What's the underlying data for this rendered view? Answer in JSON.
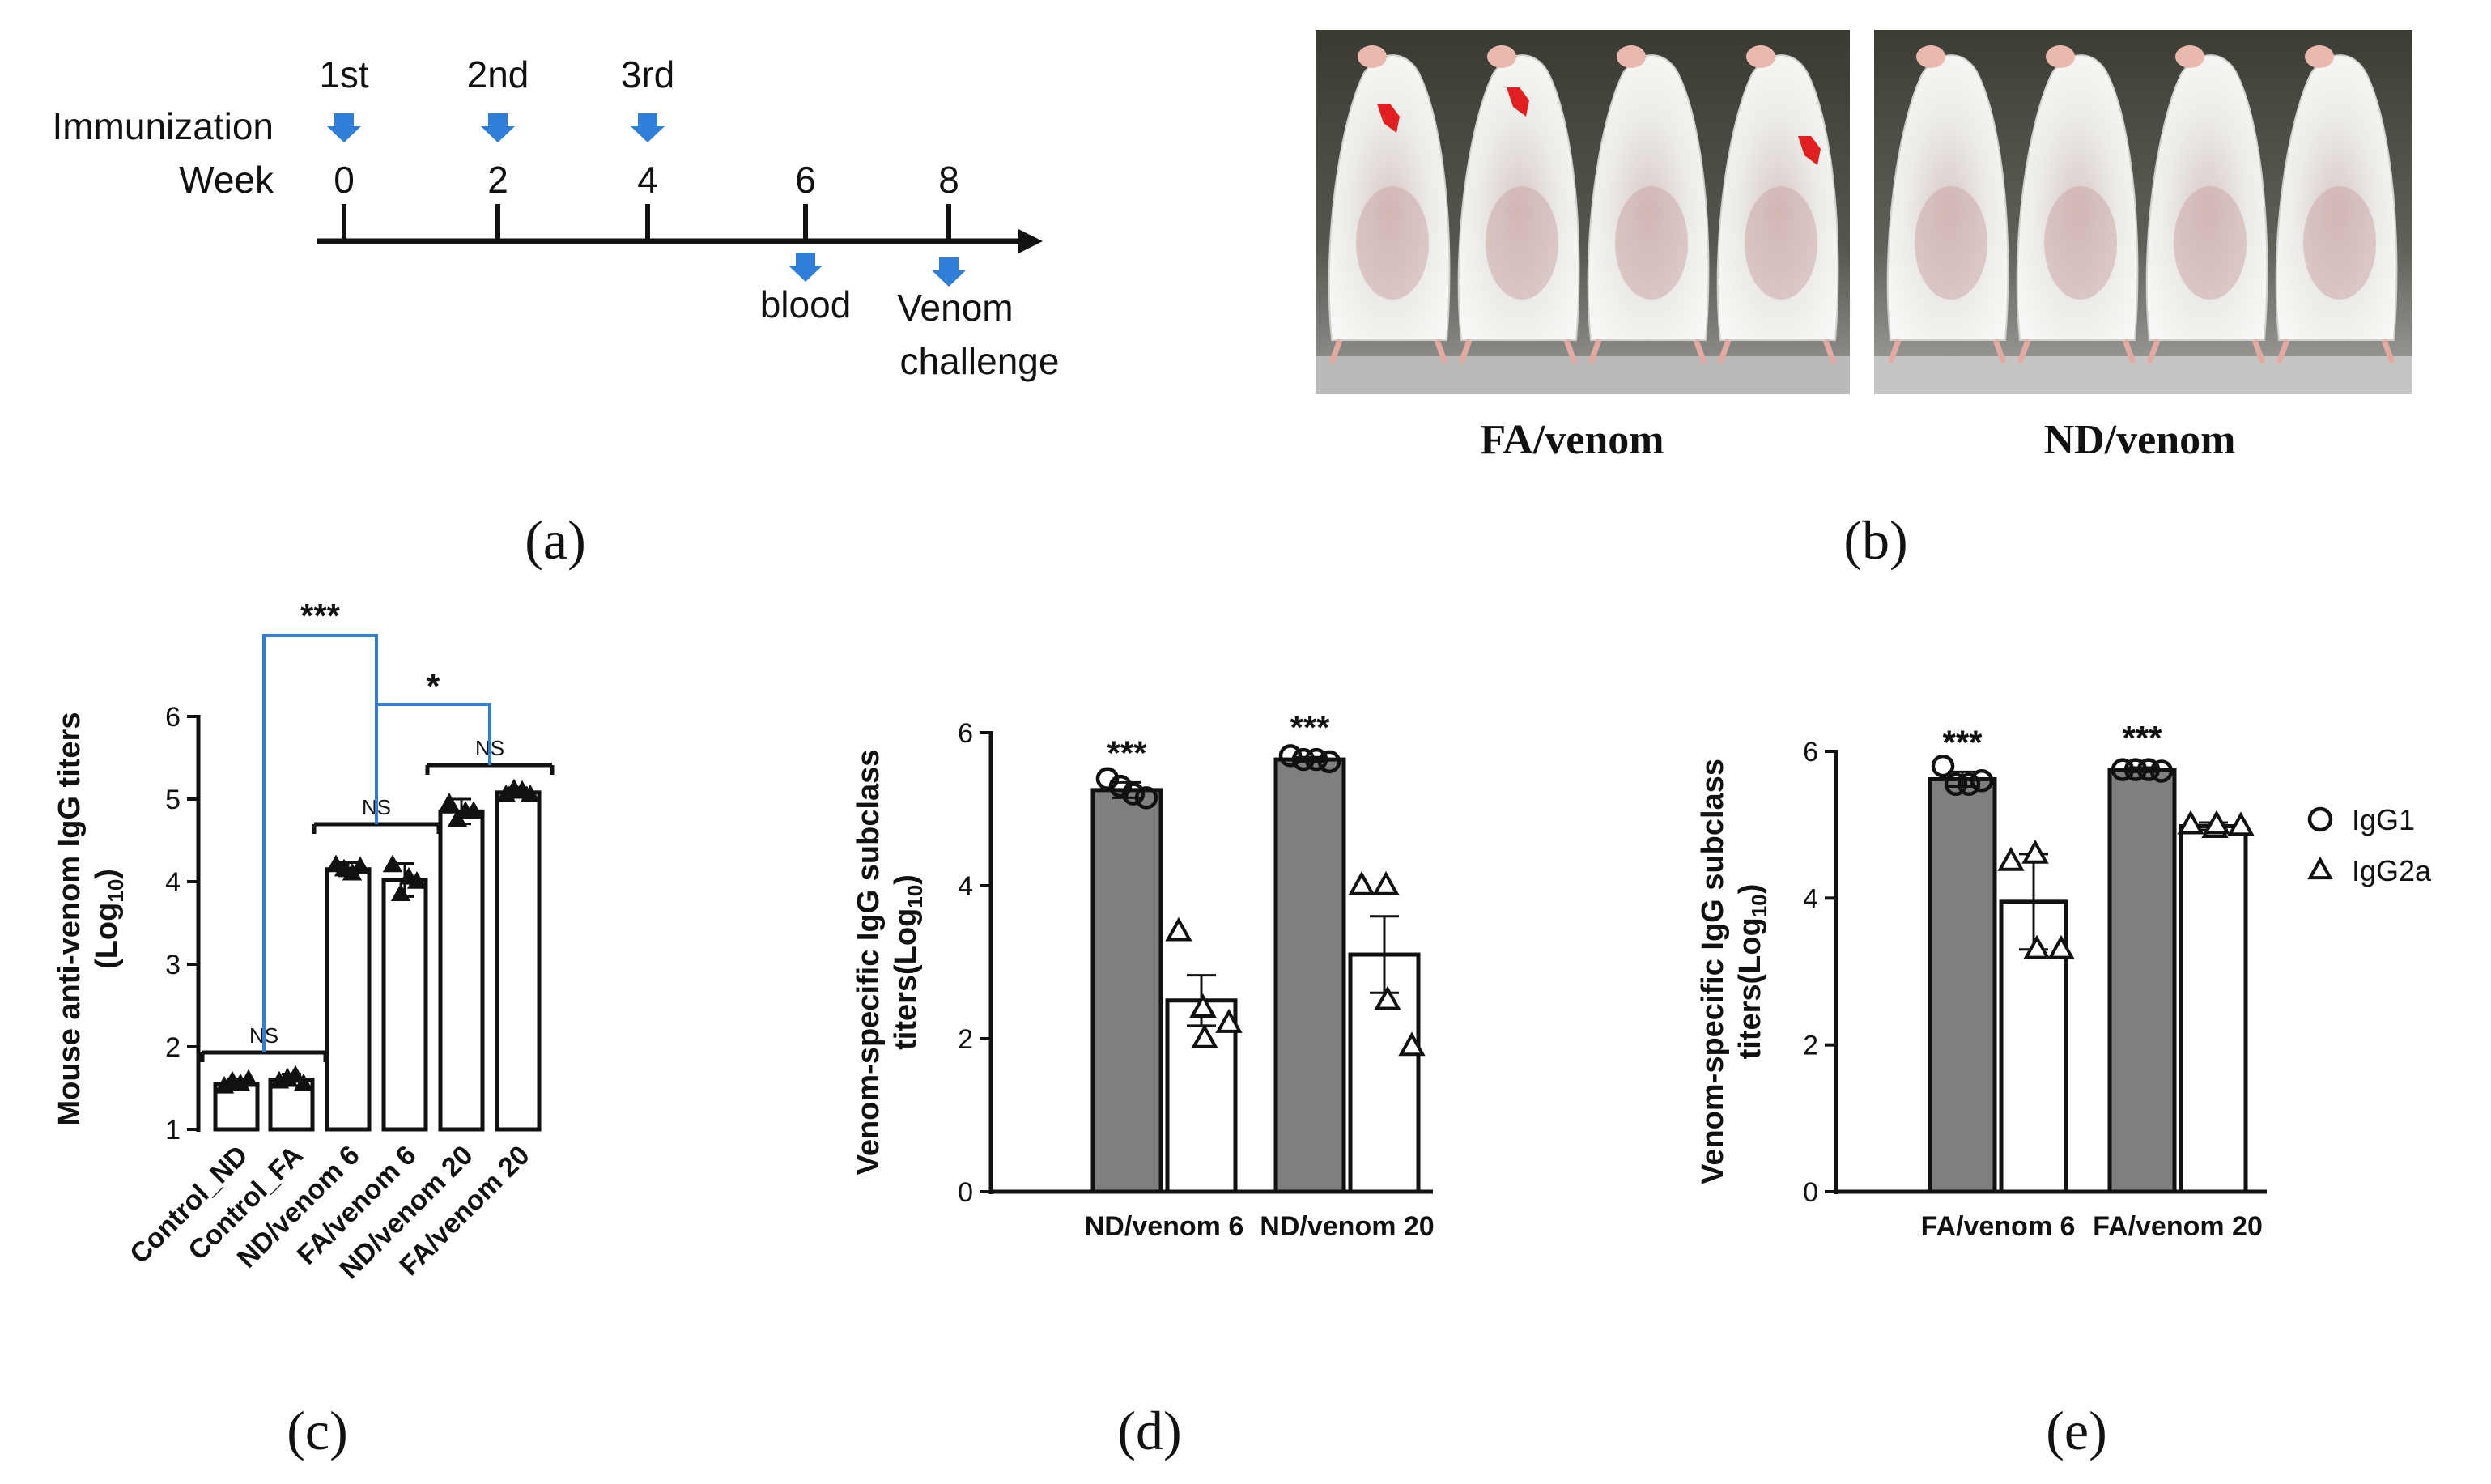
{
  "panel_labels": {
    "a": "(a)",
    "b": "(b)",
    "c": "(c)",
    "d": "(d)",
    "e": "(e)"
  },
  "timeline": {
    "row_immunization": "Immunization",
    "row_week": "Week",
    "immunizations": [
      {
        "label": "1st",
        "week": "0"
      },
      {
        "label": "2nd",
        "week": "2"
      },
      {
        "label": "3rd",
        "week": "4"
      }
    ],
    "events": [
      {
        "week": "6",
        "lines": [
          "blood"
        ]
      },
      {
        "week": "8",
        "lines": [
          "Venom",
          "challenge"
        ]
      }
    ]
  },
  "photos": {
    "left_caption": "FA/venom",
    "right_caption": "ND/venom",
    "left_mice": 4,
    "right_mice": 4,
    "arrow_color": "#e02020"
  },
  "colors": {
    "gray_bar": "#7f7f7f",
    "bracket_blue": "#2f7ed8",
    "arrow_blue": "#2f7ed8"
  },
  "chart_data": [
    {
      "type": "bar",
      "panel": "c",
      "ylabel_line1": "Mouse anti-venom IgG titers",
      "ylabel_line2_main": "(Log",
      "ylabel_line2_sub": "10",
      "ylabel_line2_end": ")",
      "ylim": [
        1,
        6
      ],
      "yticks": [
        "1",
        "2",
        "3",
        "4",
        "5",
        "6"
      ],
      "categories": [
        "Control_ND",
        "Control_FA",
        "ND/venom 6",
        "FA/venom 6",
        "ND/venom 20",
        "FA/venom 20"
      ],
      "values": [
        1.55,
        1.6,
        4.15,
        4.02,
        4.85,
        5.08
      ],
      "errors": [
        0.06,
        0.07,
        0.08,
        0.2,
        0.15,
        0.06
      ],
      "points": [
        [
          1.52,
          1.58,
          1.55,
          1.6
        ],
        [
          1.58,
          1.62,
          1.65,
          1.55
        ],
        [
          4.2,
          4.15,
          4.1,
          4.18
        ],
        [
          4.2,
          3.85,
          4.05,
          4.0
        ],
        [
          4.95,
          4.75,
          4.85,
          4.85
        ],
        [
          5.05,
          5.12,
          5.1,
          5.05
        ]
      ],
      "marker": "triangle-filled",
      "comparisons": [
        {
          "label": "NS",
          "group": [
            0,
            1
          ]
        },
        {
          "label": "NS",
          "group": [
            2,
            3
          ]
        },
        {
          "label": "NS",
          "group": [
            4,
            5
          ]
        },
        {
          "label": "***",
          "from": [
            0,
            1
          ],
          "to": [
            2,
            3
          ]
        },
        {
          "label": "*",
          "from": [
            2,
            3
          ],
          "to": [
            4,
            5
          ]
        }
      ]
    },
    {
      "type": "bar",
      "panel": "d",
      "ylabel_line1": "Venom-specific IgG subclass",
      "ylabel_line2_main": "titers(Log",
      "ylabel_line2_sub": "10",
      "ylabel_line2_end": ")",
      "ylim": [
        0,
        6
      ],
      "yticks": [
        "0",
        "2",
        "4",
        "6"
      ],
      "categories": [
        "ND/venom 6",
        "ND/venom 20"
      ],
      "series": [
        {
          "values": [
            5.25,
            5.65
          ],
          "errors": [
            0.1,
            0.03
          ],
          "points": [
            [
              5.4,
              5.3,
              5.2,
              5.15
            ],
            [
              5.7,
              5.65,
              5.65,
              5.62
            ]
          ],
          "fill": "#7f7f7f",
          "marker": "circle-open"
        },
        {
          "values": [
            2.5,
            3.1
          ],
          "errors": [
            0.33,
            0.5
          ],
          "points": [
            [
              3.4,
              2.4,
              2.0,
              2.2
            ],
            [
              4.0,
              4.0,
              2.5,
              1.9
            ]
          ],
          "fill": "#ffffff",
          "marker": "triangle-open"
        }
      ],
      "significance": [
        "***",
        "***"
      ]
    },
    {
      "type": "bar",
      "panel": "e",
      "ylabel_line1": "Venom-specific IgG subclass",
      "ylabel_line2_main": "titers(Log",
      "ylabel_line2_sub": "10",
      "ylabel_line2_end": ")",
      "ylim": [
        0,
        6
      ],
      "yticks": [
        "0",
        "2",
        "4",
        "6"
      ],
      "categories": [
        "FA/venom 6",
        "FA/venom 20"
      ],
      "series": [
        {
          "name": "IgG1",
          "values": [
            5.62,
            5.75
          ],
          "errors": [
            0.1,
            0.03
          ],
          "points": [
            [
              5.8,
              5.55,
              5.55,
              5.6
            ],
            [
              5.75,
              5.75,
              5.75,
              5.73
            ]
          ],
          "fill": "#7f7f7f",
          "marker": "circle-open"
        },
        {
          "name": "IgG2a",
          "values": [
            3.95,
            4.98
          ],
          "errors": [
            0.65,
            0.05
          ],
          "points": [
            [
              4.5,
              4.6,
              3.3,
              3.3
            ],
            [
              5.0,
              4.95,
              5.0,
              4.98
            ]
          ],
          "fill": "#ffffff",
          "marker": "triangle-open"
        }
      ],
      "significance": [
        "***",
        "***"
      ],
      "legend": "right"
    }
  ]
}
